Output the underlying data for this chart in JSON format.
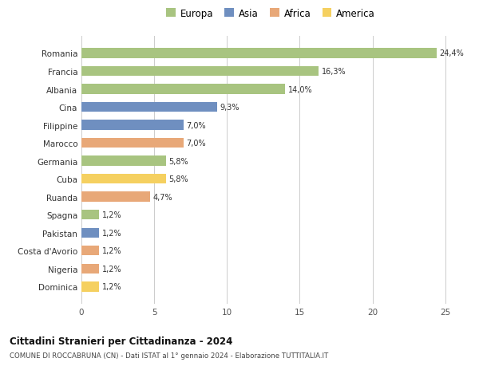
{
  "countries": [
    "Romania",
    "Francia",
    "Albania",
    "Cina",
    "Filippine",
    "Marocco",
    "Germania",
    "Cuba",
    "Ruanda",
    "Spagna",
    "Pakistan",
    "Costa d'Avorio",
    "Nigeria",
    "Dominica"
  ],
  "values": [
    24.4,
    16.3,
    14.0,
    9.3,
    7.0,
    7.0,
    5.8,
    5.8,
    4.7,
    1.2,
    1.2,
    1.2,
    1.2,
    1.2
  ],
  "labels": [
    "24,4%",
    "16,3%",
    "14,0%",
    "9,3%",
    "7,0%",
    "7,0%",
    "5,8%",
    "5,8%",
    "4,7%",
    "1,2%",
    "1,2%",
    "1,2%",
    "1,2%",
    "1,2%"
  ],
  "continents": [
    "Europa",
    "Europa",
    "Europa",
    "Asia",
    "Asia",
    "Africa",
    "Europa",
    "America",
    "Africa",
    "Europa",
    "Asia",
    "Africa",
    "Africa",
    "America"
  ],
  "colors": {
    "Europa": "#a8c480",
    "Asia": "#6f8fc0",
    "Africa": "#e8a878",
    "America": "#f5d060"
  },
  "legend_order": [
    "Europa",
    "Asia",
    "Africa",
    "America"
  ],
  "xlim": [
    0,
    26
  ],
  "xticks": [
    0,
    5,
    10,
    15,
    20,
    25
  ],
  "title1": "Cittadini Stranieri per Cittadinanza - 2024",
  "title2": "COMUNE DI ROCCABRUNA (CN) - Dati ISTAT al 1° gennaio 2024 - Elaborazione TUTTITALIA.IT",
  "bg_color": "#ffffff",
  "grid_color": "#cccccc",
  "bar_alpha": 1.0,
  "bar_height": 0.55
}
